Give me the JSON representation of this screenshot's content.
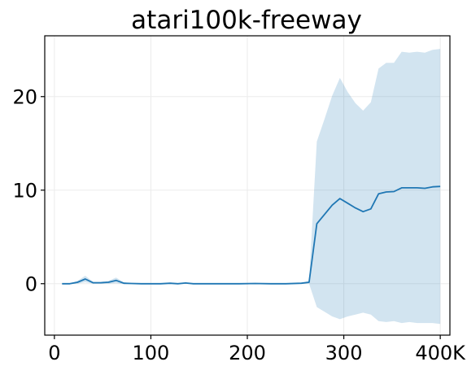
{
  "chart_data": {
    "type": "line",
    "title": "atari100k-freeway",
    "xlabel": "",
    "ylabel": "",
    "xlim": [
      -10,
      410
    ],
    "ylim": [
      -5.5,
      26.5
    ],
    "grid": true,
    "x_ticks": [
      0,
      100,
      200,
      300,
      400
    ],
    "x_tick_labels": [
      "0",
      "100",
      "200",
      "300",
      "400K"
    ],
    "y_ticks": [
      0,
      10,
      20
    ],
    "y_tick_labels": [
      "0",
      "10",
      "20"
    ],
    "colors": {
      "line": "#1f77b4",
      "band": "#1f77b4"
    },
    "series": [
      {
        "x": [
          8,
          16,
          24,
          32,
          40,
          48,
          56,
          64,
          72,
          80,
          90,
          100,
          110,
          120,
          128,
          136,
          144,
          160,
          176,
          192,
          208,
          224,
          240,
          256,
          264,
          272,
          280,
          288,
          296,
          304,
          312,
          320,
          328,
          336,
          344,
          352,
          360,
          368,
          376,
          384,
          392,
          400
        ],
        "mean": [
          0.0,
          0.0,
          0.15,
          0.5,
          0.1,
          0.1,
          0.15,
          0.35,
          0.05,
          0.02,
          0.0,
          0.0,
          0.0,
          0.05,
          0.0,
          0.07,
          0.0,
          0.0,
          0.0,
          0.0,
          0.02,
          0.0,
          0.0,
          0.05,
          0.15,
          6.4,
          7.4,
          8.4,
          9.1,
          8.6,
          8.1,
          7.7,
          8.0,
          9.6,
          9.8,
          9.85,
          10.25,
          10.25,
          10.25,
          10.2,
          10.35,
          10.4
        ],
        "upper": [
          0.05,
          0.05,
          0.3,
          0.85,
          0.2,
          0.2,
          0.3,
          0.65,
          0.15,
          0.05,
          0.02,
          0.02,
          0.02,
          0.1,
          0.02,
          0.12,
          0.02,
          0.02,
          0.02,
          0.02,
          0.05,
          0.02,
          0.02,
          0.1,
          0.3,
          15.2,
          17.6,
          20.1,
          22.0,
          20.5,
          19.3,
          18.5,
          19.4,
          23.0,
          23.6,
          23.6,
          24.8,
          24.7,
          24.8,
          24.7,
          25.0,
          25.1
        ],
        "lower": [
          -0.05,
          -0.05,
          0.0,
          0.15,
          0.0,
          0.0,
          0.0,
          0.05,
          -0.05,
          -0.02,
          -0.02,
          -0.02,
          -0.02,
          0.0,
          -0.02,
          0.02,
          -0.02,
          -0.02,
          -0.02,
          -0.02,
          -0.01,
          -0.02,
          -0.02,
          0.0,
          0.0,
          -2.5,
          -3.0,
          -3.5,
          -3.8,
          -3.5,
          -3.3,
          -3.1,
          -3.3,
          -4.0,
          -4.1,
          -4.0,
          -4.2,
          -4.1,
          -4.2,
          -4.2,
          -4.2,
          -4.3
        ]
      }
    ]
  }
}
